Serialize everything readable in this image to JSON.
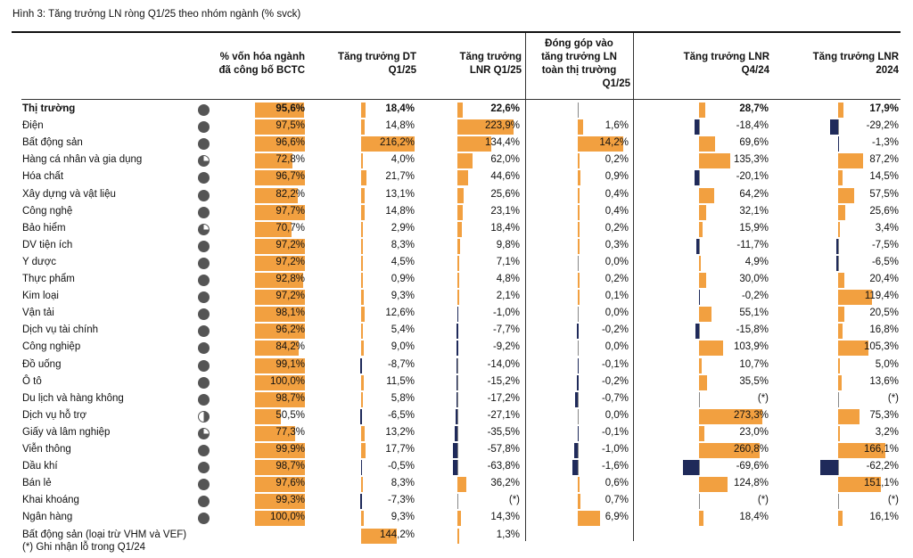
{
  "title": "Hình 3: Tăng trưởng LN ròng Q1/25 theo nhóm ngành (% svck)",
  "headers": {
    "c1": [
      "% vốn hóa ngành",
      "đã công bố BCTC"
    ],
    "c2": [
      "Tăng trưởng DT",
      "Q1/25"
    ],
    "c3": [
      "Tăng trưởng",
      "LNR Q1/25"
    ],
    "c4": [
      "Đóng góp vào",
      "tăng trưởng LN",
      "toàn thị trường",
      "Q1/25"
    ],
    "c5": [
      "Tăng trưởng LNR",
      "Q4/24"
    ],
    "c6": [
      "Tăng trưởng LNR",
      "2024"
    ]
  },
  "colors": {
    "positive_bar": "#f2a040",
    "negative_bar": "#1f2a5a",
    "dot": "#555555"
  },
  "rows": [
    {
      "name": "Thị trường",
      "bold": true,
      "dot": "full",
      "vals": [
        95.6,
        18.4,
        22.6,
        null,
        28.7,
        17.9
      ],
      "labels": [
        "95,6%",
        "18,4%",
        "22,6%",
        "",
        "28,7%",
        "17,9%"
      ]
    },
    {
      "name": "Điện",
      "dot": "full",
      "vals": [
        97.5,
        14.8,
        223.9,
        1.6,
        -18.4,
        -29.2
      ],
      "labels": [
        "97,5%",
        "14,8%",
        "223,9%",
        "1,6%",
        "-18,4%",
        "-29,2%"
      ]
    },
    {
      "name": "Bất động sản",
      "dot": "full",
      "vals": [
        96.6,
        216.2,
        134.4,
        14.2,
        69.6,
        -1.3
      ],
      "labels": [
        "96,6%",
        "216,2%",
        "134,4%",
        "14,2%",
        "69,6%",
        "-1,3%"
      ]
    },
    {
      "name": "Hàng cá nhân và gia dụng",
      "dot": "q3",
      "vals": [
        72.8,
        4.0,
        62.0,
        0.2,
        135.3,
        87.2
      ],
      "labels": [
        "72,8%",
        "4,0%",
        "62,0%",
        "0,2%",
        "135,3%",
        "87,2%"
      ]
    },
    {
      "name": "Hóa chất",
      "dot": "full",
      "vals": [
        96.7,
        21.7,
        44.6,
        0.9,
        -20.1,
        14.5
      ],
      "labels": [
        "96,7%",
        "21,7%",
        "44,6%",
        "0,9%",
        "-20,1%",
        "14,5%"
      ]
    },
    {
      "name": "Xây dựng và vật liệu",
      "dot": "full",
      "vals": [
        82.2,
        13.1,
        25.6,
        0.4,
        64.2,
        57.5
      ],
      "labels": [
        "82,2%",
        "13,1%",
        "25,6%",
        "0,4%",
        "64,2%",
        "57,5%"
      ]
    },
    {
      "name": "Công nghệ",
      "dot": "full",
      "vals": [
        97.7,
        14.8,
        23.1,
        0.4,
        32.1,
        25.6
      ],
      "labels": [
        "97,7%",
        "14,8%",
        "23,1%",
        "0,4%",
        "32,1%",
        "25,6%"
      ]
    },
    {
      "name": "Bảo hiểm",
      "dot": "q3",
      "vals": [
        70.7,
        2.9,
        18.4,
        0.2,
        15.9,
        3.4
      ],
      "labels": [
        "70,7%",
        "2,9%",
        "18,4%",
        "0,2%",
        "15,9%",
        "3,4%"
      ]
    },
    {
      "name": "DV tiện ích",
      "dot": "full",
      "vals": [
        97.2,
        8.3,
        9.8,
        0.3,
        -11.7,
        -7.5
      ],
      "labels": [
        "97,2%",
        "8,3%",
        "9,8%",
        "0,3%",
        "-11,7%",
        "-7,5%"
      ]
    },
    {
      "name": "Y dược",
      "dot": "full",
      "vals": [
        97.2,
        4.5,
        7.1,
        0.0,
        4.9,
        -6.5
      ],
      "labels": [
        "97,2%",
        "4,5%",
        "7,1%",
        "0,0%",
        "4,9%",
        "-6,5%"
      ]
    },
    {
      "name": "Thực phẩm",
      "dot": "full",
      "vals": [
        92.8,
        0.9,
        4.8,
        0.2,
        30.0,
        20.4
      ],
      "labels": [
        "92,8%",
        "0,9%",
        "4,8%",
        "0,2%",
        "30,0%",
        "20,4%"
      ]
    },
    {
      "name": "Kim loại",
      "dot": "full",
      "vals": [
        97.2,
        9.3,
        2.1,
        0.1,
        -0.2,
        119.4
      ],
      "labels": [
        "97,2%",
        "9,3%",
        "2,1%",
        "0,1%",
        "-0,2%",
        "119,4%"
      ]
    },
    {
      "name": "Vận tải",
      "dot": "full",
      "vals": [
        98.1,
        12.6,
        -1.0,
        0.0,
        55.1,
        20.5
      ],
      "labels": [
        "98,1%",
        "12,6%",
        "-1,0%",
        "0,0%",
        "55,1%",
        "20,5%"
      ]
    },
    {
      "name": "Dịch vụ tài chính",
      "dot": "full",
      "vals": [
        96.2,
        5.4,
        -7.7,
        -0.2,
        -15.8,
        16.8
      ],
      "labels": [
        "96,2%",
        "5,4%",
        "-7,7%",
        "-0,2%",
        "-15,8%",
        "16,8%"
      ]
    },
    {
      "name": "Công nghiệp",
      "dot": "full",
      "vals": [
        84.2,
        9.0,
        -9.2,
        0.0,
        103.9,
        105.3
      ],
      "labels": [
        "84,2%",
        "9,0%",
        "-9,2%",
        "0,0%",
        "103,9%",
        "105,3%"
      ]
    },
    {
      "name": "Đồ uống",
      "dot": "full",
      "vals": [
        99.1,
        -8.7,
        -14.0,
        -0.1,
        10.7,
        5.0
      ],
      "labels": [
        "99,1%",
        "-8,7%",
        "-14,0%",
        "-0,1%",
        "10,7%",
        "5,0%"
      ]
    },
    {
      "name": "Ô tô",
      "dot": "full",
      "vals": [
        100.0,
        11.5,
        -15.2,
        -0.2,
        35.5,
        13.6
      ],
      "labels": [
        "100,0%",
        "11,5%",
        "-15,2%",
        "-0,2%",
        "35,5%",
        "13,6%"
      ]
    },
    {
      "name": "Du lịch và hàng không",
      "dot": "full",
      "vals": [
        98.7,
        5.8,
        -17.2,
        -0.7,
        null,
        null
      ],
      "labels": [
        "98,7%",
        "5,8%",
        "-17,2%",
        "-0,7%",
        "(*)",
        "(*)"
      ]
    },
    {
      "name": "Dịch vụ hỗ trợ",
      "dot": "half",
      "vals": [
        50.5,
        -6.5,
        -27.1,
        0.0,
        273.3,
        75.3
      ],
      "labels": [
        "50,5%",
        "-6,5%",
        "-27,1%",
        "0,0%",
        "273,3%",
        "75,3%"
      ]
    },
    {
      "name": "Giấy và lâm nghiệp",
      "dot": "q3",
      "vals": [
        77.3,
        13.2,
        -35.5,
        -0.1,
        23.0,
        3.2
      ],
      "labels": [
        "77,3%",
        "13,2%",
        "-35,5%",
        "-0,1%",
        "23,0%",
        "3,2%"
      ]
    },
    {
      "name": "Viễn thông",
      "dot": "full",
      "vals": [
        99.9,
        17.7,
        -57.8,
        -1.0,
        260.8,
        166.1
      ],
      "labels": [
        "99,9%",
        "17,7%",
        "-57,8%",
        "-1,0%",
        "260,8%",
        "166,1%"
      ]
    },
    {
      "name": "Dầu khí",
      "dot": "full",
      "vals": [
        98.7,
        -0.5,
        -63.8,
        -1.6,
        -69.6,
        -62.2
      ],
      "labels": [
        "98,7%",
        "-0,5%",
        "-63,8%",
        "-1,6%",
        "-69,6%",
        "-62,2%"
      ]
    },
    {
      "name": "Bán lẻ",
      "dot": "full",
      "vals": [
        97.6,
        8.3,
        36.2,
        0.6,
        124.8,
        151.1
      ],
      "labels": [
        "97,6%",
        "8,3%",
        "36,2%",
        "0,6%",
        "124,8%",
        "151,1%"
      ]
    },
    {
      "name": "Khai khoáng",
      "dot": "full",
      "vals": [
        99.3,
        -7.3,
        null,
        0.7,
        null,
        null
      ],
      "labels": [
        "99,3%",
        "-7,3%",
        "(*)",
        "0,7%",
        "(*)",
        "(*)"
      ]
    },
    {
      "name": "Ngân hàng",
      "dot": "full",
      "vals": [
        100.0,
        9.3,
        14.3,
        6.9,
        18.4,
        16.1
      ],
      "labels": [
        "100,0%",
        "9,3%",
        "14,3%",
        "6,9%",
        "18,4%",
        "16,1%"
      ]
    },
    {
      "name": "Bất động sản (loại trừ VHM và VEF)",
      "dot": "none",
      "vals": [
        null,
        144.2,
        1.3,
        null,
        null,
        null
      ],
      "labels": [
        "",
        "144,2%",
        "1,3%",
        "",
        "",
        ""
      ]
    }
  ],
  "footnote": "(*) Ghi nhận lỗ trong Q1/24"
}
